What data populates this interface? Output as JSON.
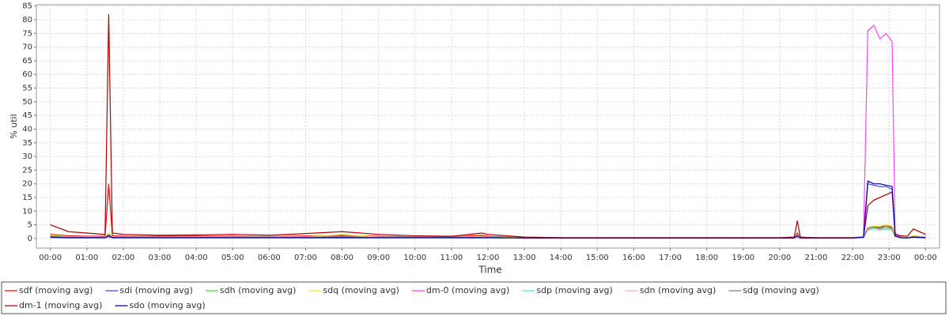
{
  "chart_data": {
    "type": "line",
    "x_label": "Time",
    "y_label": "% util",
    "x": [
      0,
      30,
      60,
      90,
      96,
      102,
      120,
      180,
      240,
      300,
      360,
      420,
      480,
      540,
      600,
      660,
      710,
      720,
      780,
      840,
      900,
      960,
      1020,
      1080,
      1140,
      1200,
      1224,
      1229,
      1234,
      1260,
      1320,
      1338,
      1345,
      1355,
      1365,
      1375,
      1385,
      1390,
      1400,
      1410,
      1420,
      1440
    ],
    "xlim": [
      -23,
      1463
    ],
    "xticks": [
      {
        "value": 0,
        "label": "00:00"
      },
      {
        "value": 60,
        "label": "01:00"
      },
      {
        "value": 120,
        "label": "02:00"
      },
      {
        "value": 180,
        "label": "03:00"
      },
      {
        "value": 240,
        "label": "04:00"
      },
      {
        "value": 300,
        "label": "05:00"
      },
      {
        "value": 360,
        "label": "06:00"
      },
      {
        "value": 420,
        "label": "07:00"
      },
      {
        "value": 480,
        "label": "08:00"
      },
      {
        "value": 540,
        "label": "09:00"
      },
      {
        "value": 600,
        "label": "10:00"
      },
      {
        "value": 660,
        "label": "11:00"
      },
      {
        "value": 720,
        "label": "12:00"
      },
      {
        "value": 780,
        "label": "13:00"
      },
      {
        "value": 840,
        "label": "14:00"
      },
      {
        "value": 900,
        "label": "15:00"
      },
      {
        "value": 960,
        "label": "16:00"
      },
      {
        "value": 1020,
        "label": "17:00"
      },
      {
        "value": 1080,
        "label": "18:00"
      },
      {
        "value": 1140,
        "label": "19:00"
      },
      {
        "value": 1200,
        "label": "20:00"
      },
      {
        "value": 1260,
        "label": "21:00"
      },
      {
        "value": 1320,
        "label": "22:00"
      },
      {
        "value": 1380,
        "label": "23:00"
      },
      {
        "value": 1440,
        "label": "00:00"
      }
    ],
    "ylim": [
      -3.5,
      85.5
    ],
    "yticks": [
      0,
      5,
      10,
      15,
      20,
      25,
      30,
      35,
      40,
      45,
      50,
      55,
      60,
      65,
      70,
      75,
      80,
      85
    ],
    "grid": true,
    "legend": "bottom",
    "series": [
      {
        "name": "sdf (moving avg)",
        "color": "#ff0000",
        "values": [
          1.5,
          1,
          0.8,
          0.8,
          20,
          1,
          0.8,
          0.8,
          0.9,
          0.8,
          0.7,
          0.9,
          1.2,
          0.8,
          0.6,
          0.5,
          1.2,
          0.8,
          0.3,
          0.2,
          0.2,
          0.2,
          0.2,
          0.2,
          0.2,
          0.2,
          0.3,
          2,
          0.3,
          0.2,
          0.2,
          0.5,
          4,
          4.5,
          4,
          5,
          4,
          1,
          0.5,
          0.3,
          1,
          0.5
        ]
      },
      {
        "name": "sdi (moving avg)",
        "color": "#4444ff",
        "values": [
          0.5,
          0.3,
          0.3,
          0.3,
          1,
          0.3,
          0.3,
          0.3,
          0.3,
          0.3,
          0.3,
          0.3,
          0.4,
          0.3,
          0.3,
          0.3,
          0.3,
          0.3,
          0.2,
          0.2,
          0.2,
          0.2,
          0.2,
          0.2,
          0.2,
          0.2,
          0.2,
          1,
          0.2,
          0.2,
          0.2,
          0.5,
          20,
          19.5,
          19,
          19,
          18,
          1,
          0.3,
          0.2,
          0.5,
          0.3
        ]
      },
      {
        "name": "sdh (moving avg)",
        "color": "#44dd44",
        "values": [
          1,
          0.5,
          0.5,
          0.4,
          2,
          0.5,
          0.4,
          0.4,
          0.5,
          0.4,
          0.4,
          0.5,
          0.8,
          0.4,
          0.3,
          0.3,
          0.6,
          0.4,
          0.2,
          0.2,
          0.2,
          0.2,
          0.2,
          0.2,
          0.2,
          0.2,
          0.2,
          1.5,
          0.2,
          0.2,
          0.2,
          0.5,
          3.5,
          4,
          3.5,
          4,
          3.5,
          0.8,
          0.3,
          0.2,
          0.8,
          0.3
        ]
      },
      {
        "name": "sdq (moving avg)",
        "color": "#eeee33",
        "values": [
          1.2,
          0.6,
          0.6,
          0.5,
          2,
          0.6,
          0.5,
          0.5,
          0.6,
          0.5,
          0.5,
          0.6,
          1.5,
          0.5,
          0.4,
          0.4,
          0.8,
          0.5,
          0.3,
          0.3,
          0.3,
          0.3,
          0.3,
          0.3,
          0.3,
          0.3,
          0.3,
          1.5,
          0.3,
          0.3,
          0.3,
          0.6,
          4,
          4.5,
          4.5,
          5,
          4.5,
          1,
          0.4,
          0.3,
          1,
          0.4
        ]
      },
      {
        "name": "dm-0 (moving avg)",
        "color": "#ff44ff",
        "values": [
          0.2,
          0.2,
          0.2,
          0.2,
          0.5,
          0.2,
          0.2,
          0.2,
          0.2,
          0.2,
          0.2,
          0.2,
          0.2,
          0.2,
          0.2,
          0.2,
          0.2,
          0.2,
          0.1,
          0.1,
          0.1,
          0.1,
          0.1,
          0.1,
          0.1,
          0.1,
          0.1,
          0.5,
          0.1,
          0.1,
          0.1,
          0.5,
          76,
          78,
          73,
          75,
          72,
          2,
          0.3,
          0.2,
          0.5,
          0.2
        ]
      },
      {
        "name": "sdp (moving avg)",
        "color": "#44eeee",
        "values": [
          0.3,
          0.2,
          0.2,
          0.2,
          0.8,
          0.2,
          0.2,
          0.2,
          0.2,
          0.2,
          0.2,
          0.2,
          0.2,
          0.2,
          0.2,
          0.2,
          0.3,
          0.2,
          0.1,
          0.1,
          0.1,
          0.1,
          0.1,
          0.1,
          0.1,
          0.1,
          0.1,
          0.8,
          0.1,
          0.1,
          0.1,
          0.3,
          3,
          3.5,
          3,
          3.5,
          3,
          0.6,
          0.2,
          0.1,
          0.4,
          0.2
        ]
      },
      {
        "name": "sdn (moving avg)",
        "color": "#ffaaaa",
        "values": [
          0.4,
          0.2,
          0.2,
          0.2,
          1,
          0.2,
          0.2,
          0.2,
          0.2,
          0.2,
          0.2,
          0.2,
          0.2,
          0.2,
          0.2,
          0.2,
          0.3,
          0.2,
          0.1,
          0.1,
          0.1,
          0.1,
          0.1,
          0.1,
          0.1,
          0.1,
          0.1,
          0.8,
          0.1,
          0.1,
          0.1,
          0.3,
          3.2,
          3.6,
          3.2,
          3.8,
          3.2,
          0.6,
          0.2,
          0.1,
          0.4,
          0.2
        ]
      },
      {
        "name": "sdg (moving avg)",
        "color": "#808080",
        "values": [
          0.8,
          0.4,
          0.4,
          0.3,
          1.5,
          0.4,
          0.3,
          0.3,
          0.4,
          0.3,
          0.3,
          0.4,
          0.7,
          0.3,
          0.3,
          0.3,
          0.5,
          0.3,
          0.2,
          0.2,
          0.2,
          0.2,
          0.2,
          0.2,
          0.2,
          0.2,
          0.2,
          1.2,
          0.2,
          0.2,
          0.2,
          0.4,
          3.8,
          4.2,
          3.8,
          4.5,
          3.8,
          0.8,
          0.3,
          0.2,
          0.7,
          0.3
        ]
      },
      {
        "name": "dm-1 (moving avg)",
        "color": "#aa0000",
        "values": [
          5,
          2.5,
          2,
          1.5,
          82,
          2,
          1.5,
          1.2,
          1.3,
          1.5,
          1.2,
          1.8,
          2.5,
          1.5,
          1,
          0.8,
          2,
          1.5,
          0.5,
          0.3,
          0.3,
          0.3,
          0.3,
          0.3,
          0.3,
          0.3,
          0.5,
          6.5,
          0.5,
          0.3,
          0.3,
          0.5,
          12,
          14,
          15,
          16,
          17,
          1.5,
          1,
          0.8,
          3.5,
          1.5
        ]
      },
      {
        "name": "sdo (moving avg)",
        "color": "#000099",
        "values": [
          0.5,
          0.3,
          0.3,
          0.3,
          1,
          0.3,
          0.3,
          0.3,
          0.3,
          0.3,
          0.3,
          0.3,
          0.3,
          0.3,
          0.3,
          0.3,
          0.3,
          0.3,
          0.2,
          0.2,
          0.2,
          0.2,
          0.2,
          0.2,
          0.2,
          0.2,
          0.2,
          1,
          0.2,
          0.2,
          0.2,
          0.5,
          21,
          20,
          20,
          19.5,
          19,
          1,
          0.3,
          0.2,
          0.5,
          0.3
        ]
      }
    ]
  }
}
